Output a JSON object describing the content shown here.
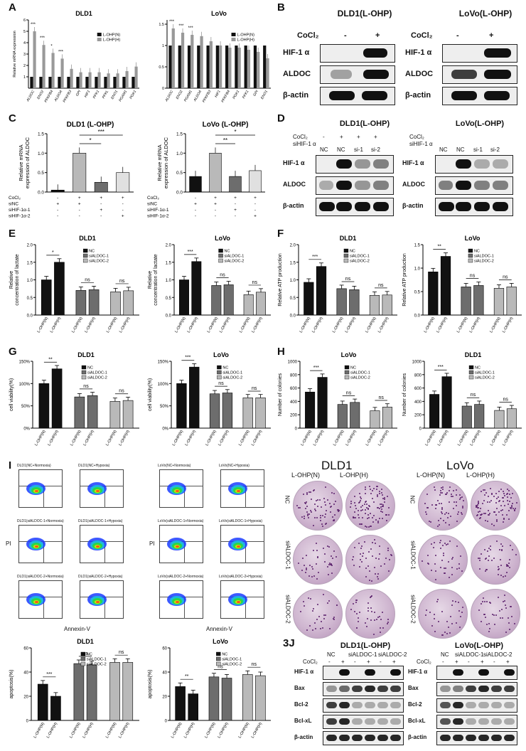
{
  "panel_labels": [
    "A",
    "B",
    "C",
    "D",
    "E",
    "F",
    "G",
    "H",
    "I"
  ],
  "panel_J_label": "3J",
  "legends": {
    "loh": [
      "L-OHP(N)",
      "L-OHP(H)"
    ],
    "nc": [
      "NC",
      "siALDOC-1",
      "siALDOC-2"
    ]
  },
  "cond_labels": [
    "L-OHP(N)",
    "L-OHP(H)"
  ],
  "ns": "ns",
  "sig": {
    "s1": "*",
    "s2": "**",
    "s3": "***"
  },
  "icons": {
    "band": "western-blot-band",
    "plate": "colony-plate",
    "flow": "flow-cytometry-plot"
  },
  "colors": {
    "black": "#111111",
    "dark_gray": "#6d6d6d",
    "light_gray": "#b9b9b9",
    "plate": "#cfb6d0",
    "colony": "#5a1f6b"
  },
  "panel_A": {
    "dld1_title": "DLD1",
    "lovo_title": "LoVo",
    "ylabel": "Relative mRNA expression",
    "genes_dld1": [
      "ALDOC",
      "ENO2",
      "PFKFB4",
      "ALDOA",
      "PFKFB3",
      "GPI",
      "HIF1",
      "PFK1",
      "PFKL",
      "ENO1",
      "PGAM1",
      "PGK1"
    ],
    "genes_lovo": [
      "ALDOC",
      "ENO2",
      "PGAM1",
      "ALDOA",
      "PFKFB3",
      "HIF1",
      "PFKFB4",
      "PGK1",
      "PFK1",
      "GPI",
      "ENO1"
    ]
  },
  "panel_B": {
    "dld1_title": "DLD1(L-OHP)",
    "lovo_title": "LoVo(L-OHP)",
    "treat": "CoCl₂",
    "minus": "-",
    "plus": "+",
    "rows": [
      "HIF-1 α",
      "ALDOC",
      "β-actin"
    ]
  },
  "panel_C": {
    "dld1_title": "DLD1 (L-OHP)",
    "lovo_title": "LoVo (L-OHP)",
    "ylabel1": "Relative mRNA",
    "ylabel2": "expression of ALDOC",
    "rows": [
      "CoCl₂",
      "siNC",
      "siHIF-1α-1",
      "siHIF-1α-2"
    ],
    "marks": [
      [
        "-",
        "+",
        "+",
        "+"
      ],
      [
        "+",
        "+",
        "-",
        "-"
      ],
      [
        "-",
        "-",
        "+",
        "-"
      ],
      [
        "-",
        "-",
        "-",
        "+"
      ]
    ]
  },
  "panel_D": {
    "dld1_title": "DLD1(L-OHP)",
    "lovo_title": "LoVo(L-OHP)",
    "row1": "CoCl₂",
    "row2": "siHIF-1 α",
    "cols": [
      "NC",
      "NC",
      "si-1",
      "si-2"
    ],
    "signs": [
      "-",
      "+",
      "+",
      "+"
    ],
    "rows": [
      "HIF-1 α",
      "ALDOC",
      "β-actin"
    ]
  },
  "panel_E": {
    "ylabel1": "Relative",
    "ylabel2": "concentration of lactate"
  },
  "panel_F": {
    "ylabel": "Relative ATP production"
  },
  "panel_G": {
    "ylabel": "cell viability(%)"
  },
  "panel_H": {
    "ylabel": "Number of colonies"
  },
  "panel_I": {
    "xlabel": "Annexin-V",
    "ylabel": "PI",
    "flow_titles_dld1": [
      "DLD1(NC+Normoxia)",
      "DLD1(NC+Hypoxia)",
      "DLD1(siALDOC-1+Normoxia)",
      "DLD1(siALDOC-1+Hypoxia)",
      "DLD1(siALDOC-2+Normoxia)",
      "DLD1(siALDOC-2+Hypoxia)"
    ],
    "flow_titles_lovo": [
      "LoVo(NC+Normoxia)",
      "LoVo(NC+Hypoxia)",
      "LoVo(siALDOC-1+Normoxia)",
      "LoVo(siALDOC-1+Hypoxia)",
      "LoVo(siALDOC-2+Normoxia)",
      "LoVo(siALDOC-2+Hypoxia)"
    ],
    "colony_dld1": "DLD1",
    "colony_lovo": "LoVo",
    "colony_rows": [
      "NC",
      "siALDOC-1",
      "siALDOC-2"
    ],
    "apop_ylabel": "apoptosis(%)"
  },
  "panel_J": {
    "dld1_title": "DLD1(L-OHP)",
    "lovo_title": "LoVo(L-OHP)",
    "groups": [
      "NC",
      "siALDOC-1",
      "siALDOC-2"
    ],
    "treat": "CoCl₂",
    "signs": [
      "-",
      "+",
      "-",
      "+",
      "-",
      "+"
    ],
    "rows": [
      "HIF-1 α",
      "Bax",
      "Bcl-2",
      "Bcl-xL",
      "β-actin"
    ]
  },
  "chart_data": [
    {
      "id": "A-DLD1",
      "type": "bar",
      "title": "DLD1",
      "ylabel": "Relative mRNA expression",
      "ylim": [
        0,
        6
      ],
      "categories": [
        "ALDOC",
        "ENO2",
        "PFKFB4",
        "ALDOA",
        "PFKFB3",
        "GPI",
        "HIF1",
        "PFK1",
        "PFKL",
        "ENO1",
        "PGAM1",
        "PGK1"
      ],
      "series": [
        {
          "name": "L-OHP(N)",
          "values": [
            1,
            1,
            1,
            1,
            1,
            1,
            1,
            1,
            1,
            1,
            1,
            1
          ]
        },
        {
          "name": "L-OHP(H)",
          "values": [
            5.0,
            3.8,
            3.1,
            2.6,
            1.7,
            1.4,
            1.4,
            1.4,
            1.3,
            1.3,
            1.5,
            1.9
          ]
        }
      ]
    },
    {
      "id": "A-LoVo",
      "type": "bar",
      "title": "LoVo",
      "ylim": [
        0,
        1.6
      ],
      "categories": [
        "ALDOC",
        "ENO2",
        "PGAM1",
        "ALDOA",
        "PFKFB3",
        "HIF1",
        "PFKFB4",
        "PGK1",
        "PFK1",
        "GPI",
        "ENO1"
      ],
      "series": [
        {
          "name": "L-OHP(N)",
          "values": [
            1,
            1,
            1,
            1,
            1,
            1,
            1,
            1,
            1,
            1,
            1
          ]
        },
        {
          "name": "L-OHP(H)",
          "values": [
            1.4,
            1.3,
            1.25,
            1.22,
            1.1,
            1.0,
            0.95,
            0.95,
            0.9,
            0.85,
            0.7
          ]
        }
      ]
    },
    {
      "id": "C-DLD1",
      "type": "bar",
      "title": "DLD1 (L-OHP)",
      "ylim": [
        0,
        1.5
      ],
      "categories": [
        "1",
        "2",
        "3",
        "4"
      ],
      "values": [
        0.05,
        1.0,
        0.25,
        0.5
      ]
    },
    {
      "id": "C-LoVo",
      "type": "bar",
      "title": "LoVo (L-OHP)",
      "ylim": [
        0,
        1.5
      ],
      "categories": [
        "1",
        "2",
        "3",
        "4"
      ],
      "values": [
        0.4,
        1.0,
        0.4,
        0.55
      ]
    },
    {
      "id": "E-DLD1",
      "type": "bar",
      "title": "DLD1",
      "ylim": [
        0,
        2.0
      ],
      "values": [
        1.0,
        1.5,
        0.7,
        0.72,
        0.66,
        0.69
      ]
    },
    {
      "id": "E-LoVo",
      "type": "bar",
      "title": "LoVo",
      "ylim": [
        0,
        2.0
      ],
      "values": [
        1.0,
        1.52,
        0.84,
        0.86,
        0.58,
        0.65
      ]
    },
    {
      "id": "F-DLD1",
      "type": "bar",
      "title": "DLD1",
      "ylim": [
        0,
        2.0
      ],
      "values": [
        0.93,
        1.38,
        0.75,
        0.72,
        0.56,
        0.57
      ]
    },
    {
      "id": "F-LoVo",
      "type": "bar",
      "title": "LoVo",
      "ylim": [
        0,
        1.5
      ],
      "values": [
        0.92,
        1.25,
        0.6,
        0.63,
        0.57,
        0.6
      ]
    },
    {
      "id": "G-DLD1",
      "type": "bar",
      "title": "DLD1",
      "ylim": [
        0,
        150
      ],
      "values": [
        100,
        133,
        70,
        73,
        60,
        62
      ]
    },
    {
      "id": "G-LoVo",
      "type": "bar",
      "title": "LoVo",
      "ylim": [
        0,
        150
      ],
      "values": [
        100,
        137,
        77,
        79,
        68,
        68
      ]
    },
    {
      "id": "H-LoVo",
      "type": "bar",
      "title": "LoVo",
      "ylim": [
        0,
        1000
      ],
      "values": [
        540,
        760,
        355,
        385,
        260,
        315
      ]
    },
    {
      "id": "H-DLD1",
      "type": "bar",
      "title": "DLD1",
      "ylim": [
        0,
        1000
      ],
      "values": [
        505,
        770,
        330,
        355,
        265,
        290
      ]
    },
    {
      "id": "I-DLD1",
      "type": "bar",
      "title": "DLD1",
      "ylim": [
        0,
        60
      ],
      "values": [
        30,
        20,
        47,
        46,
        48,
        48
      ]
    },
    {
      "id": "I-LoVo",
      "type": "bar",
      "title": "LoVo",
      "ylim": [
        0,
        60
      ],
      "values": [
        28,
        22,
        36,
        35,
        38,
        37
      ]
    }
  ]
}
